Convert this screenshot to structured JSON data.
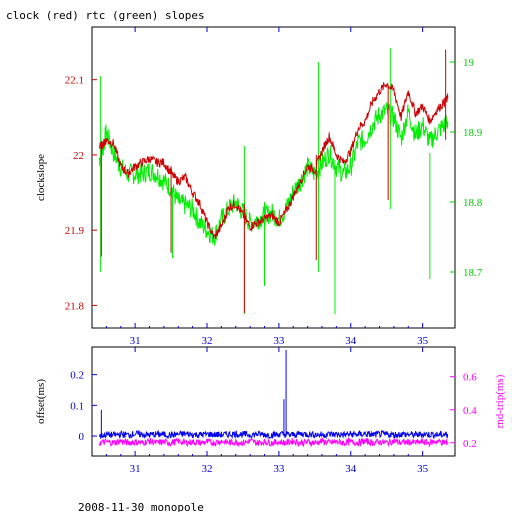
{
  "title": "clock (red) rtc (green) slopes",
  "footer": "2008-11-30 monopole",
  "colors": {
    "clock": "#cc0000",
    "rtc": "#00ee00",
    "offset": "#0000ee",
    "rtt": "#ff00ff",
    "left_axis_top": "#cc0000",
    "right_axis_top": "#00cc00",
    "axis_bottom": "#0000cc",
    "right_axis_bottom": "#ff00ff"
  },
  "chart_data": [
    {
      "type": "line",
      "ylabel": "clockslope",
      "xlim": [
        30.4,
        35.45
      ],
      "ylim": [
        21.77,
        22.17
      ],
      "y2lim": [
        18.62,
        19.05
      ],
      "xticks": [
        "31",
        "32",
        "33",
        "34",
        "35"
      ],
      "yticks": [
        "21.8",
        "21.9",
        "22",
        "22.1"
      ],
      "y2ticks": [
        "18.7",
        "18.8",
        "18.9",
        "19"
      ],
      "series": [
        {
          "name": "clock",
          "axis": "left",
          "x": [
            30.5,
            30.56,
            30.6,
            30.7,
            30.8,
            30.9,
            31.0,
            31.1,
            31.2,
            31.3,
            31.4,
            31.5,
            31.6,
            31.7,
            31.8,
            31.9,
            32.0,
            32.1,
            32.2,
            32.3,
            32.4,
            32.5,
            32.6,
            32.7,
            32.8,
            32.9,
            33.0,
            33.1,
            33.2,
            33.3,
            33.4,
            33.5,
            33.6,
            33.7,
            33.8,
            33.9,
            34.0,
            34.1,
            34.2,
            34.3,
            34.4,
            34.5,
            34.6,
            34.7,
            34.8,
            34.9,
            35.0,
            35.1,
            35.2,
            35.3,
            35.35
          ],
          "y": [
            22.01,
            22.015,
            22.02,
            22.015,
            21.985,
            21.975,
            21.985,
            21.99,
            21.995,
            21.99,
            21.99,
            21.975,
            21.965,
            21.97,
            21.95,
            21.935,
            21.91,
            21.89,
            21.905,
            21.93,
            21.935,
            21.92,
            21.905,
            21.91,
            21.915,
            21.92,
            21.91,
            21.925,
            21.945,
            21.965,
            21.985,
            21.98,
            22.005,
            22.025,
            22.0,
            21.99,
            22.005,
            22.035,
            22.045,
            22.07,
            22.085,
            22.095,
            22.085,
            22.05,
            22.085,
            22.055,
            22.065,
            22.045,
            22.06,
            22.07,
            22.075
          ]
        },
        {
          "name": "rtc",
          "axis": "right",
          "x": [
            30.5,
            30.56,
            30.6,
            30.7,
            30.8,
            30.9,
            31.0,
            31.1,
            31.2,
            31.3,
            31.4,
            31.5,
            31.6,
            31.7,
            31.8,
            31.9,
            32.0,
            32.1,
            32.2,
            32.3,
            32.4,
            32.5,
            32.6,
            32.7,
            32.8,
            32.9,
            33.0,
            33.1,
            33.2,
            33.3,
            33.4,
            33.5,
            33.6,
            33.7,
            33.8,
            33.9,
            34.0,
            34.1,
            34.2,
            34.3,
            34.4,
            34.5,
            34.6,
            34.7,
            34.8,
            34.9,
            35.0,
            35.1,
            35.2,
            35.3,
            35.35
          ],
          "y": [
            18.86,
            18.88,
            18.9,
            18.87,
            18.85,
            18.84,
            18.84,
            18.84,
            18.845,
            18.84,
            18.83,
            18.82,
            18.8,
            18.795,
            18.79,
            18.77,
            18.76,
            18.75,
            18.775,
            18.79,
            18.8,
            18.785,
            18.77,
            18.775,
            18.78,
            18.785,
            18.775,
            18.79,
            18.815,
            18.83,
            18.85,
            18.84,
            18.855,
            18.87,
            18.85,
            18.84,
            18.85,
            18.885,
            18.89,
            18.91,
            18.925,
            18.93,
            18.92,
            18.89,
            18.93,
            18.895,
            18.91,
            18.885,
            18.9,
            18.91,
            18.915
          ]
        }
      ]
    },
    {
      "type": "line",
      "ylabel": "offset(ms)",
      "y2label": "rnd-trip(ms)",
      "xlim": [
        30.4,
        35.45
      ],
      "ylim": [
        -0.065,
        0.29
      ],
      "y2lim": [
        0.12,
        0.78
      ],
      "xticks": [
        "31",
        "32",
        "33",
        "34",
        "35"
      ],
      "yticks": [
        "0",
        "0.1",
        "0.2"
      ],
      "y2ticks": [
        "0.2",
        "0.4",
        "0.6"
      ],
      "series": [
        {
          "name": "offset",
          "axis": "left",
          "x": [
            30.5,
            30.6,
            30.7,
            30.8,
            30.9,
            31.0,
            31.1,
            31.2,
            31.3,
            31.4,
            31.5,
            31.6,
            31.7,
            31.8,
            31.9,
            32.0,
            32.1,
            32.2,
            32.3,
            32.4,
            32.5,
            32.6,
            32.7,
            32.8,
            32.9,
            33.0,
            33.1,
            33.2,
            33.3,
            33.4,
            33.5,
            33.6,
            33.7,
            33.8,
            33.9,
            34.0,
            34.1,
            34.2,
            34.3,
            34.4,
            34.5,
            34.6,
            34.7,
            34.8,
            34.9,
            35.0,
            35.1,
            35.2,
            35.3,
            35.35
          ],
          "y": [
            0.0,
            0.005,
            0.003,
            0.006,
            0.004,
            0.007,
            0.005,
            0.004,
            0.006,
            0.005,
            0.003,
            0.006,
            0.007,
            0.005,
            0.004,
            0.006,
            0.005,
            0.004,
            0.006,
            0.007,
            0.005,
            0.004,
            0.006,
            0.005,
            0.003,
            0.006,
            0.005,
            0.004,
            0.007,
            0.006,
            0.005,
            0.004,
            0.006,
            0.005,
            0.004,
            0.006,
            0.005,
            0.007,
            0.004,
            0.006,
            0.005,
            0.004,
            0.006,
            0.005,
            0.004,
            0.006,
            0.005,
            0.004,
            0.005,
            0.005
          ]
        },
        {
          "name": "rnd-trip",
          "axis": "right",
          "x": [
            30.5,
            30.6,
            30.7,
            30.8,
            30.9,
            31.0,
            31.1,
            31.2,
            31.3,
            31.4,
            31.5,
            31.6,
            31.7,
            31.8,
            31.9,
            32.0,
            32.1,
            32.2,
            32.3,
            32.4,
            32.5,
            32.6,
            32.7,
            32.8,
            32.9,
            33.0,
            33.1,
            33.2,
            33.3,
            33.4,
            33.5,
            33.6,
            33.7,
            33.8,
            33.9,
            34.0,
            34.1,
            34.2,
            34.3,
            34.4,
            34.5,
            34.6,
            34.7,
            34.8,
            34.9,
            35.0,
            35.1,
            35.2,
            35.3,
            35.35
          ],
          "y": [
            0.2,
            0.205,
            0.2,
            0.21,
            0.2,
            0.205,
            0.2,
            0.21,
            0.2,
            0.205,
            0.2,
            0.21,
            0.2,
            0.205,
            0.2,
            0.205,
            0.2,
            0.21,
            0.2,
            0.205,
            0.2,
            0.21,
            0.2,
            0.205,
            0.2,
            0.205,
            0.2,
            0.21,
            0.2,
            0.205,
            0.2,
            0.21,
            0.2,
            0.205,
            0.2,
            0.205,
            0.2,
            0.21,
            0.2,
            0.205,
            0.2,
            0.21,
            0.2,
            0.205,
            0.2,
            0.205,
            0.2,
            0.21,
            0.2,
            0.205
          ]
        }
      ]
    }
  ]
}
